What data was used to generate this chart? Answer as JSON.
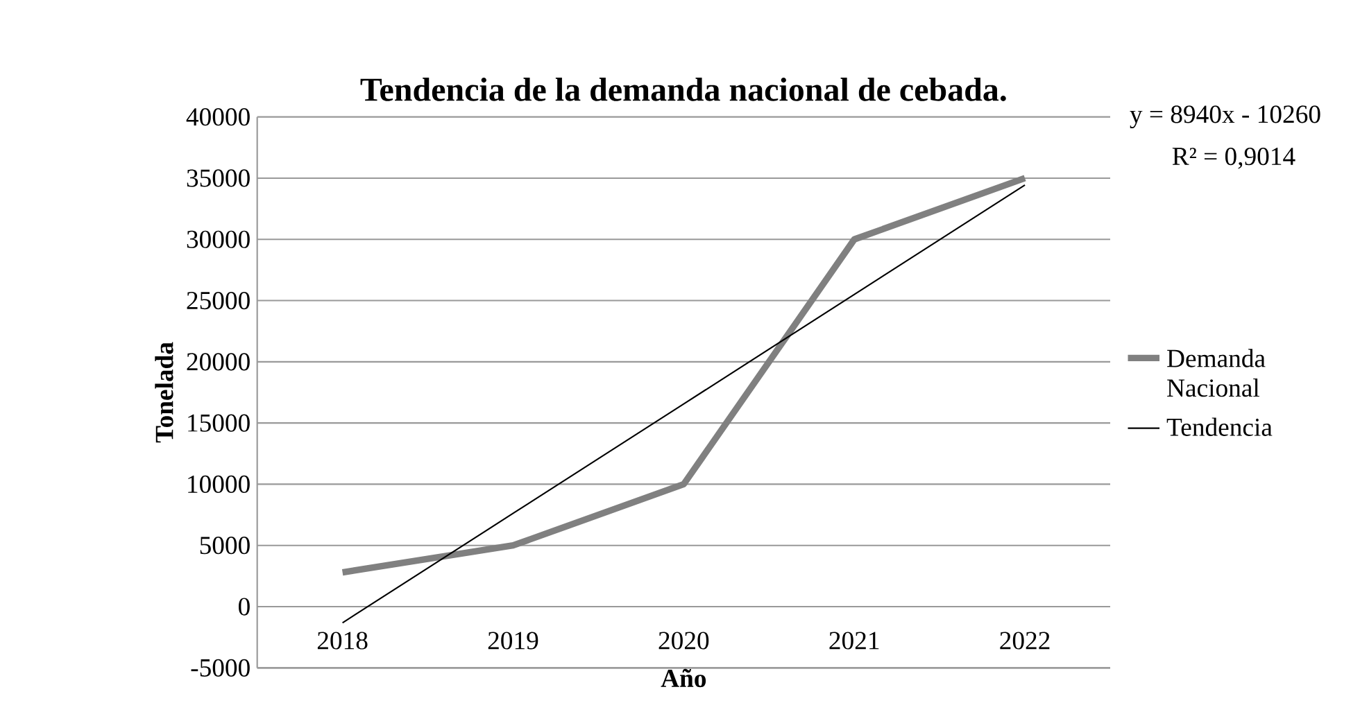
{
  "chart_data": {
    "type": "line",
    "title": "Tendencia de la demanda nacional de cebada.",
    "xlabel": "Año",
    "ylabel": "Tonelada",
    "categories": [
      "2018",
      "2019",
      "2020",
      "2021",
      "2022"
    ],
    "series": [
      {
        "name": "Demanda Nacional",
        "color": "#808080",
        "values": [
          2800,
          5000,
          10000,
          30000,
          35000
        ]
      },
      {
        "name": "Tendencia",
        "color": "#000000",
        "values": [
          -1320,
          7620,
          16560,
          25500,
          34440
        ]
      }
    ],
    "ylim": [
      -5000,
      40000
    ],
    "yticks": [
      -5000,
      0,
      5000,
      10000,
      15000,
      20000,
      25000,
      30000,
      35000,
      40000
    ],
    "grid": "y",
    "legend": "right",
    "annotations": [
      "y = 8940x - 10260",
      "R² = 0,9014"
    ]
  }
}
